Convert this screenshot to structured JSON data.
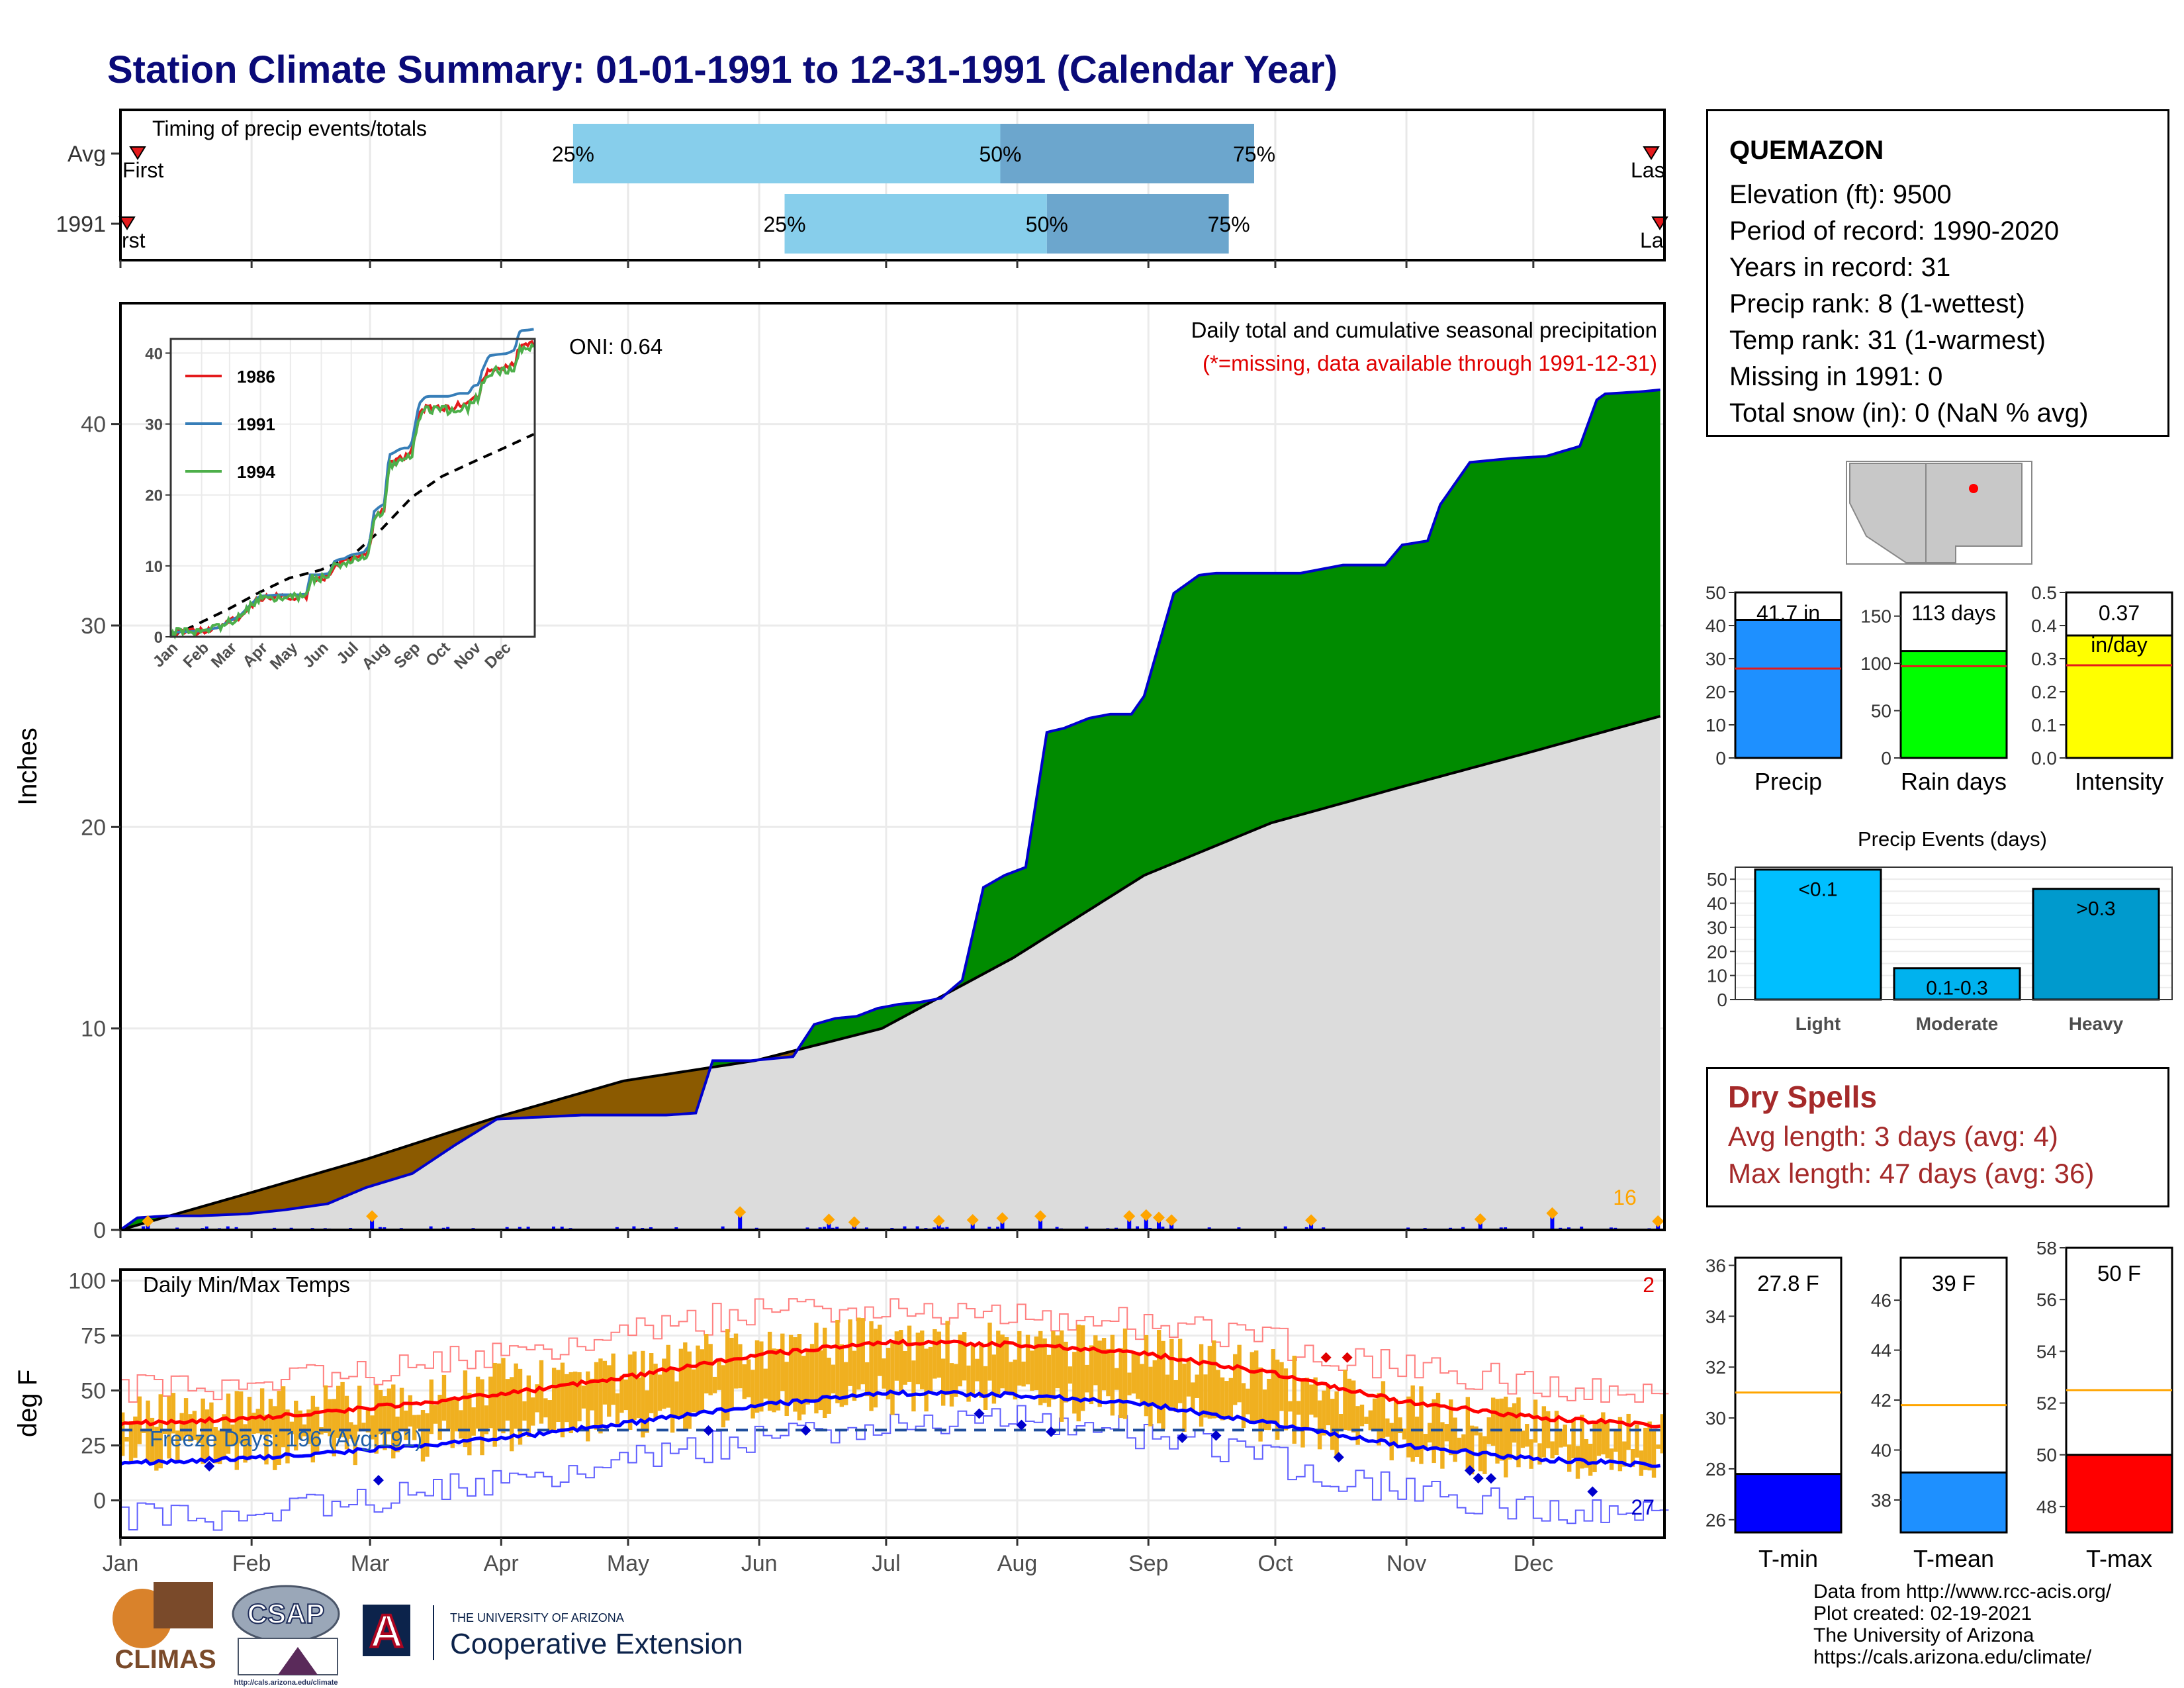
{
  "title": "Station Climate Summary: 01-01-1991 to 12-31-1991 (Calendar Year)",
  "months": [
    "Jan",
    "Feb",
    "Mar",
    "Apr",
    "May",
    "Jun",
    "Jul",
    "Aug",
    "Sep",
    "Oct",
    "Nov",
    "Dec"
  ],
  "timing_panel": {
    "label": "Timing of precip events/totals",
    "rows": [
      {
        "name": "Avg",
        "p25_day": 108,
        "p50_day": 209,
        "p75_day": 269,
        "p25_label": "25%",
        "p50_label": "50%",
        "p75_label": "75%",
        "first_label": "First",
        "last_label": "Las"
      },
      {
        "name": "1991",
        "p25_day": 158,
        "p50_day": 220,
        "p75_day": 263,
        "p25_label": "25%",
        "p50_label": "50%",
        "p75_label": "75%",
        "first_label": "rst",
        "last_label": "La"
      }
    ],
    "colors": {
      "light": "#87ceeb",
      "dark": "#6ca6cd",
      "marker": "#e41a1c"
    }
  },
  "precip_panel": {
    "ylabel": "Inches",
    "y_ticks": [
      "0",
      "10",
      "20",
      "30",
      "40"
    ],
    "oni": "ONI: 0.64",
    "subtitle": "Daily total and cumulative seasonal precipitation",
    "missing_note": "(*=missing, data available through 1991-12-31)",
    "count_label": "16",
    "colors": {
      "above": "#008b00",
      "below": "#8b5a00",
      "normal": "#dcdcdc",
      "line": "#0000cd",
      "marker": "#ffa500"
    }
  },
  "inset": {
    "y_ticks": [
      "0",
      "10",
      "20",
      "30",
      "40"
    ],
    "legend": [
      {
        "name": "1986",
        "color": "#e41a1c"
      },
      {
        "name": "1991",
        "color": "#377eb8"
      },
      {
        "name": "1994",
        "color": "#4daf4a"
      }
    ]
  },
  "temp_panel": {
    "ylabel": "deg F",
    "y_ticks": [
      "0",
      "25",
      "50",
      "75",
      "100"
    ],
    "label": "Daily Min/Max Temps",
    "freeze_label": "Freeze Days: 196 (Avg:191)",
    "count_hot": "2",
    "count_cold": "27"
  },
  "station": {
    "name": "QUEMAZON",
    "lines": [
      "Elevation (ft): 9500",
      "Period of record: 1990-2020",
      "Years in record: 31",
      "Precip rank: 8 (1-wettest)",
      "Temp rank: 31 (1-warmest)",
      "Missing in 1991: 0",
      "Total snow (in): 0 (NaN % avg)"
    ]
  },
  "summary_bars": [
    {
      "name": "Precip",
      "value_label": "41.7 in",
      "value": 41.7,
      "avg": 27,
      "ymax": 50,
      "ticks": [
        "0",
        "10",
        "20",
        "30",
        "40",
        "50"
      ],
      "color": "#1e90ff"
    },
    {
      "name": "Rain days",
      "value_label": "113 days",
      "value": 113,
      "avg": 97,
      "ymax": 175,
      "ticks": [
        "0",
        "50",
        "100",
        "150"
      ],
      "color": "#00ff00"
    },
    {
      "name": "Intensity",
      "value_label": "0.37",
      "value_label2": "in/day",
      "value": 0.37,
      "avg": 0.28,
      "ymax": 0.5,
      "ticks": [
        "0.0",
        "0.1",
        "0.2",
        "0.3",
        "0.4",
        "0.5"
      ],
      "color": "#ffff00"
    }
  ],
  "precip_events": {
    "title": "Precip Events (days)",
    "ticks": [
      "0",
      "10",
      "20",
      "30",
      "40",
      "50"
    ],
    "categories": [
      "Light",
      "Moderate",
      "Heavy"
    ],
    "labels": [
      "<0.1",
      "0.1-0.3",
      ">0.3"
    ],
    "values": [
      54,
      13,
      46
    ],
    "colors": [
      "#00bfff",
      "#00b2ee",
      "#009acd"
    ]
  },
  "dry_spells": {
    "title": "Dry Spells",
    "avg_line": "Avg length: 3 days (avg: 4)",
    "max_line": "Max length: 47 days (avg: 36)"
  },
  "temp_bars": [
    {
      "name": "T-min",
      "value_label": "27.8 F",
      "value": 27.8,
      "avg": 31,
      "ymin": 25.5,
      "ymax": 36.3,
      "ticks": [
        "26",
        "28",
        "30",
        "32",
        "34",
        "36"
      ],
      "color": "#0000ff"
    },
    {
      "name": "T-mean",
      "value_label": "39 F",
      "value": 39.1,
      "avg": 41.8,
      "ymin": 36.7,
      "ymax": 47.7,
      "ticks": [
        "38",
        "40",
        "42",
        "44",
        "46"
      ],
      "color": "#1e90ff"
    },
    {
      "name": "T-max",
      "value_label": "50 F",
      "value": 50.0,
      "avg": 52.5,
      "ymin": 47.0,
      "ymax": 58.0,
      "ticks": [
        "48",
        "50",
        "52",
        "54",
        "56",
        "58"
      ],
      "color": "#ff0000"
    }
  ],
  "footer": {
    "lines": [
      "Data from http://www.rcc-acis.org/",
      "Plot created: 02-19-2021",
      "The University of Arizona",
      "https://cals.arizona.edu/climate/"
    ]
  },
  "logos": {
    "climas": "CLIMAS",
    "csap": "CSAP",
    "csap_url": "http://cals.arizona.edu/climate",
    "ua_small": "THE UNIVERSITY OF ARIZONA",
    "ua_big": "Cooperative Extension"
  },
  "chart_data": [
    {
      "type": "area",
      "title": "Daily total and cumulative seasonal precipitation",
      "ylabel": "Inches",
      "ylim": [
        0,
        46
      ],
      "x_unit": "day of year",
      "series": [
        {
          "name": "1991",
          "x": [
            1,
            5,
            12,
            20,
            31,
            40,
            50,
            59,
            70,
            80,
            90,
            100,
            110,
            120,
            130,
            137,
            141,
            150,
            155,
            160,
            165,
            170,
            175,
            180,
            185,
            190,
            195,
            200,
            205,
            210,
            215,
            220,
            224,
            230,
            235,
            240,
            243,
            246,
            250,
            256,
            260,
            270,
            280,
            290,
            300,
            304,
            310,
            313,
            320,
            330,
            338,
            346,
            350,
            352,
            360,
            365
          ],
          "values": [
            0.0,
            0.6,
            0.7,
            0.7,
            0.8,
            1.0,
            1.3,
            2.1,
            2.8,
            4.2,
            5.5,
            5.6,
            5.7,
            5.7,
            5.7,
            5.8,
            8.4,
            8.4,
            8.5,
            8.6,
            10.2,
            10.5,
            10.6,
            11.0,
            11.2,
            11.3,
            11.5,
            12.4,
            17.0,
            17.6,
            18.0,
            24.7,
            24.9,
            25.4,
            25.6,
            25.6,
            26.5,
            28.7,
            31.6,
            32.5,
            32.6,
            32.6,
            32.6,
            33.0,
            33.0,
            34.0,
            34.2,
            36.0,
            38.1,
            38.3,
            38.4,
            38.9,
            41.2,
            41.5,
            41.6,
            41.7
          ]
        },
        {
          "name": "Average",
          "x": [
            1,
            31,
            59,
            90,
            120,
            151,
            181,
            212,
            243,
            273,
            304,
            334,
            365
          ],
          "values": [
            0.0,
            1.8,
            3.5,
            5.6,
            7.4,
            8.4,
            10.0,
            13.5,
            17.6,
            20.2,
            22.0,
            23.7,
            25.5
          ]
        }
      ],
      "daily_events": {
        "x": [
          7,
          60,
          147,
          168,
          174,
          194,
          202,
          209,
          218,
          239,
          243,
          246,
          249,
          282,
          322,
          339,
          364
        ],
        "values": [
          0.3,
          0.55,
          0.75,
          0.38,
          0.25,
          0.32,
          0.36,
          0.45,
          0.55,
          0.55,
          0.6,
          0.48,
          0.35,
          0.35,
          0.4,
          0.7,
          0.3
        ]
      }
    },
    {
      "type": "line",
      "title": "Daily Min/Max Temps",
      "ylabel": "deg F",
      "ylim": [
        -17,
        105
      ],
      "x_unit": "day of year",
      "series": [
        {
          "name": "Avg max",
          "x": [
            1,
            31,
            59,
            90,
            120,
            151,
            181,
            212,
            243,
            273,
            304,
            334,
            365
          ],
          "values": [
            35,
            37,
            42,
            48,
            56,
            66,
            72,
            71,
            67,
            58,
            45,
            38,
            34
          ]
        },
        {
          "name": "Avg min",
          "x": [
            1,
            31,
            59,
            90,
            120,
            151,
            181,
            212,
            243,
            273,
            304,
            334,
            365
          ],
          "values": [
            17,
            19,
            23,
            28,
            35,
            43,
            49,
            48,
            44,
            35,
            25,
            19,
            16
          ]
        },
        {
          "name": "Record high",
          "x": [
            1,
            31,
            59,
            90,
            120,
            151,
            181,
            212,
            243,
            273,
            304,
            334,
            365
          ],
          "values": [
            50,
            52,
            58,
            66,
            76,
            86,
            88,
            84,
            80,
            72,
            60,
            54,
            48
          ]
        },
        {
          "name": "Record low",
          "x": [
            1,
            31,
            59,
            90,
            120,
            151,
            181,
            212,
            243,
            273,
            304,
            334,
            365
          ],
          "values": [
            -8,
            -8,
            0,
            8,
            18,
            28,
            35,
            38,
            30,
            18,
            4,
            -3,
            -5
          ]
        },
        {
          "name": "Freezing",
          "x": [
            1,
            365
          ],
          "values": [
            32,
            32
          ]
        }
      ],
      "daily_range_max": {
        "x": [
          1,
          31,
          59,
          90,
          120,
          151,
          181,
          212,
          243,
          273,
          304,
          334,
          365
        ],
        "values": [
          38,
          40,
          46,
          54,
          57,
          70,
          74,
          70,
          68,
          58,
          42,
          36,
          30
        ]
      },
      "daily_range_min": {
        "x": [
          1,
          31,
          59,
          90,
          120,
          151,
          181,
          212,
          243,
          273,
          304,
          334,
          365
        ],
        "values": [
          22,
          22,
          24,
          30,
          36,
          44,
          48,
          46,
          42,
          34,
          24,
          18,
          16
        ]
      }
    }
  ]
}
